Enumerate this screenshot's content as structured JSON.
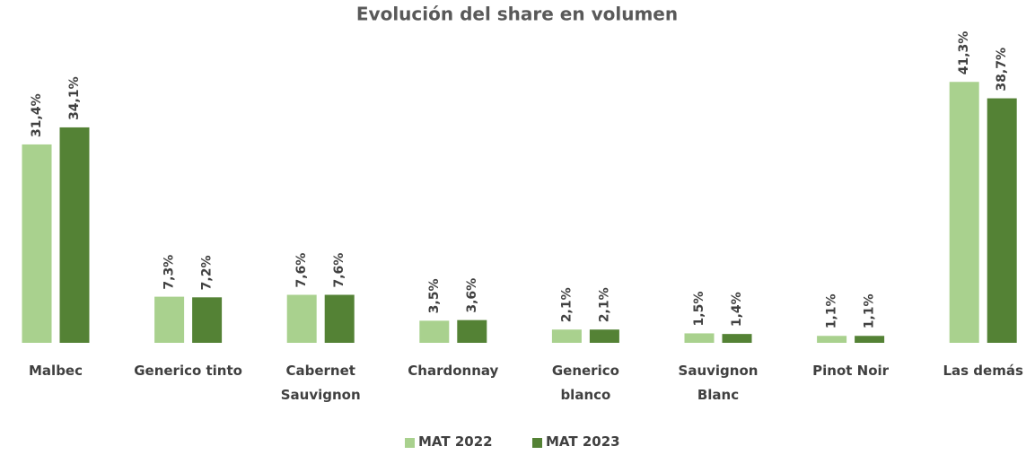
{
  "chart_data": {
    "type": "bar",
    "title": "Evolución del share en volumen",
    "categories": [
      "Malbec",
      "Generico tinto",
      "Cabernet\nSauvignon",
      "Chardonnay",
      "Generico\nblanco",
      "Sauvignon\nBlanc",
      "Pinot Noir",
      "Las demás"
    ],
    "series": [
      {
        "name": "MAT 2022",
        "color": "#a9d18e",
        "values": [
          31.4,
          7.3,
          7.6,
          3.5,
          2.1,
          1.5,
          1.1,
          41.3
        ],
        "value_labels": [
          "31,4%",
          "7,3%",
          "7,6%",
          "3,5%",
          "2,1%",
          "1,5%",
          "1,1%",
          "41,3%"
        ]
      },
      {
        "name": "MAT 2023",
        "color": "#548235",
        "values": [
          34.1,
          7.2,
          7.6,
          3.6,
          2.1,
          1.4,
          1.1,
          38.7
        ],
        "value_labels": [
          "34,1%",
          "7,2%",
          "7,6%",
          "3,6%",
          "2,1%",
          "1,4%",
          "1,1%",
          "38,7%"
        ]
      }
    ],
    "legend": "bottom"
  }
}
